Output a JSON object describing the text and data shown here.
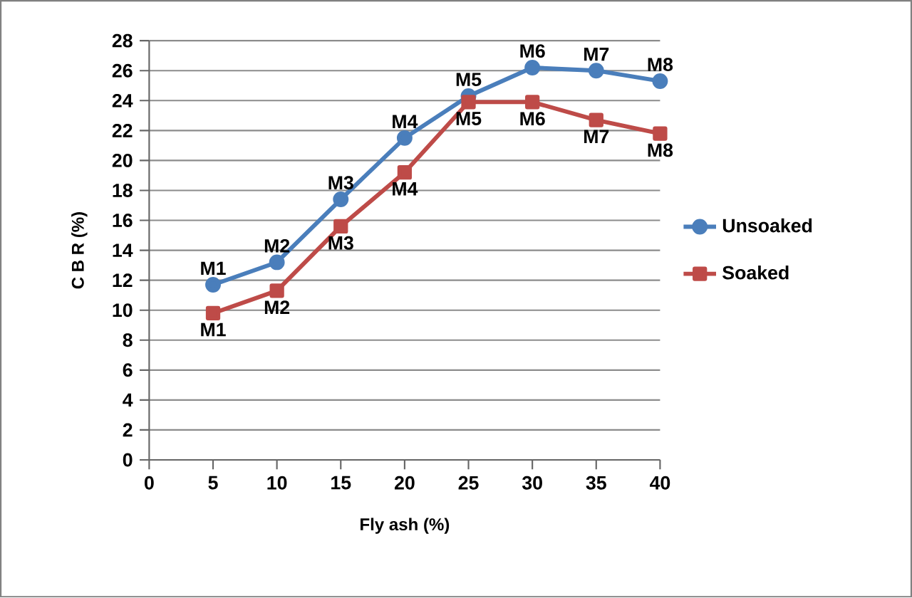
{
  "chart_data": {
    "type": "line",
    "xlabel": "Fly ash (%)",
    "ylabel": "C B R (%)",
    "x": [
      5,
      10,
      15,
      20,
      25,
      30,
      35,
      40
    ],
    "series": [
      {
        "name": "Unsoaked",
        "color": "#4a7ebb",
        "marker": "circle",
        "values": [
          11.7,
          13.2,
          17.4,
          21.5,
          24.3,
          26.2,
          26.0,
          25.3
        ]
      },
      {
        "name": "Soaked",
        "color": "#be4b48",
        "marker": "square",
        "values": [
          9.8,
          11.3,
          15.6,
          19.2,
          23.9,
          23.9,
          22.7,
          21.8
        ]
      }
    ],
    "xlim": [
      0,
      40
    ],
    "xticks": [
      0,
      5,
      10,
      15,
      20,
      25,
      30,
      35,
      40
    ],
    "ylim": [
      0,
      28
    ],
    "yticks": [
      0,
      2,
      4,
      6,
      8,
      10,
      12,
      14,
      16,
      18,
      20,
      22,
      24,
      26,
      28
    ],
    "grid": "y",
    "legend": "right",
    "line_style": "solid",
    "annotations": [
      {
        "text": "M1",
        "x": 5,
        "y": 11.7
      },
      {
        "text": "M2",
        "x": 10,
        "y": 13.2
      },
      {
        "text": "M3",
        "x": 15,
        "y": 17.4
      },
      {
        "text": "M4",
        "x": 20,
        "y": 21.5
      },
      {
        "text": "M5",
        "x": 25,
        "y": 24.3
      },
      {
        "text": "M6",
        "x": 30,
        "y": 26.2
      },
      {
        "text": "M7",
        "x": 35,
        "y": 26.0
      },
      {
        "text": "M8",
        "x": 40,
        "y": 25.3
      },
      {
        "text": "M1",
        "x": 5,
        "y": 9.8
      },
      {
        "text": "M2",
        "x": 10,
        "y": 11.3
      },
      {
        "text": "M3",
        "x": 15,
        "y": 15.6
      },
      {
        "text": "M4",
        "x": 20,
        "y": 19.2
      },
      {
        "text": "M5",
        "x": 25,
        "y": 23.9
      },
      {
        "text": "M6",
        "x": 30,
        "y": 23.9
      },
      {
        "text": "M7",
        "x": 35,
        "y": 22.7
      },
      {
        "text": "M8",
        "x": 40,
        "y": 21.8
      }
    ]
  }
}
